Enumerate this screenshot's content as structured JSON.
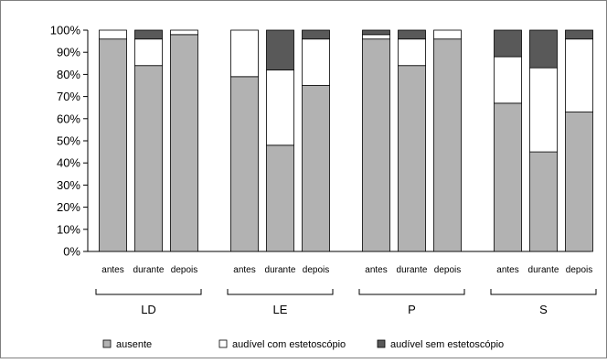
{
  "chart_data": {
    "type": "bar",
    "stacked": true,
    "percent": true,
    "title": "",
    "xlabel": "",
    "ylabel": "",
    "ylim": [
      0,
      100
    ],
    "yticks": [
      "0%",
      "10%",
      "20%",
      "30%",
      "40%",
      "50%",
      "60%",
      "70%",
      "80%",
      "90%",
      "100%"
    ],
    "grid": false,
    "legend_position": "bottom",
    "groups": [
      {
        "label": "LD",
        "categories": [
          "antes",
          "durante",
          "depois"
        ]
      },
      {
        "label": "LE",
        "categories": [
          "antes",
          "durante",
          "depois"
        ]
      },
      {
        "label": "P",
        "categories": [
          "antes",
          "durante",
          "depois"
        ]
      },
      {
        "label": "S",
        "categories": [
          "antes",
          "durante",
          "depois"
        ]
      }
    ],
    "series": [
      {
        "name": "ausente",
        "color": "#b2b2b2",
        "values": [
          96,
          84,
          98,
          79,
          48,
          75,
          96,
          84,
          96,
          67,
          45,
          63
        ]
      },
      {
        "name": "audível com estetoscópio",
        "color": "#ffffff",
        "values": [
          4,
          12,
          2,
          21,
          34,
          21,
          2,
          12,
          4,
          21,
          38,
          33
        ]
      },
      {
        "name": "audível sem estetoscópio",
        "color": "#595959",
        "values": [
          0,
          4,
          0,
          0,
          18,
          4,
          2,
          4,
          0,
          12,
          17,
          4
        ]
      }
    ]
  }
}
